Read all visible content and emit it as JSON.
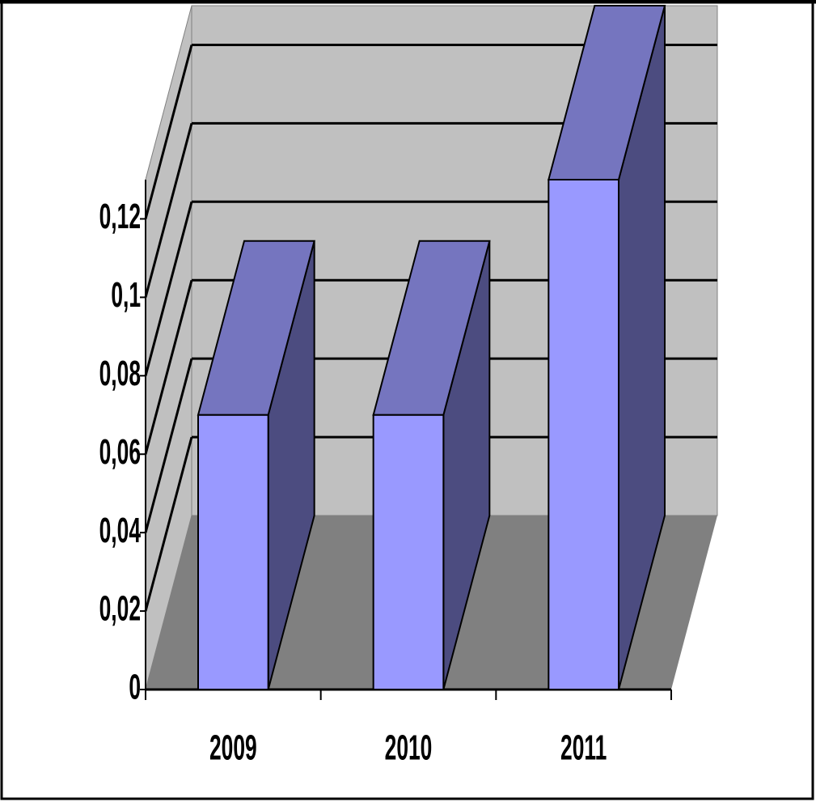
{
  "chart_data": {
    "type": "bar3d",
    "categories": [
      "2009",
      "2010",
      "2011"
    ],
    "values": [
      0.07,
      0.07,
      0.13
    ],
    "color": "#9999ff",
    "ylim": [
      0,
      0.13
    ],
    "yticks": [
      0,
      {
        "value": 0.02,
        "label": "0,02"
      },
      {
        "value": 0.04,
        "label": "0,04"
      },
      {
        "value": 0.06,
        "label": "0,06"
      },
      {
        "value": 0.08,
        "label": "0,08"
      },
      {
        "value": 0.1,
        "label": "0,1"
      },
      {
        "value": 0.12,
        "label": "0,12"
      }
    ],
    "grid": true
  }
}
